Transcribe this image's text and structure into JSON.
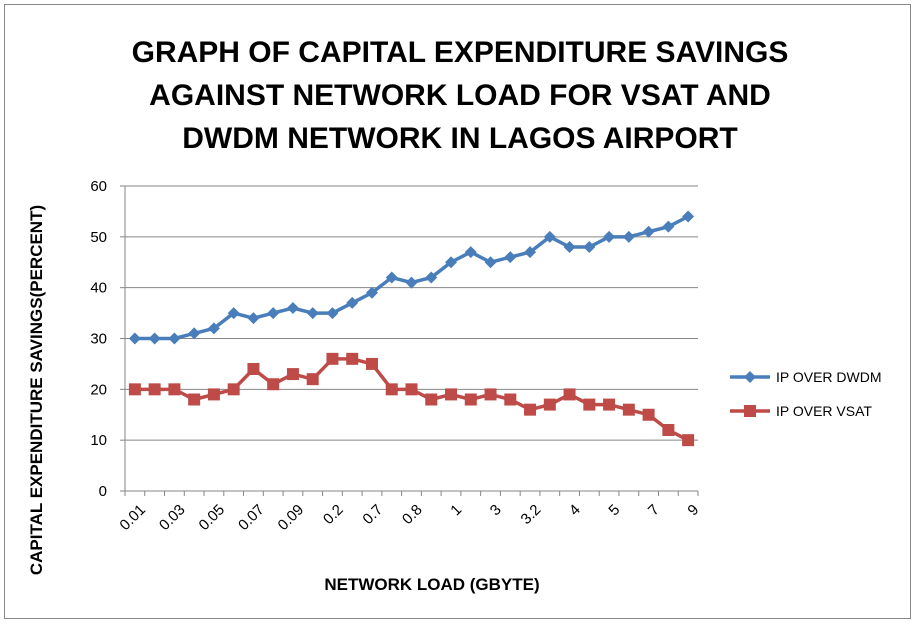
{
  "chart_data": {
    "type": "line",
    "title": [
      "GRAPH OF CAPITAL EXPENDITURE SAVINGS",
      "AGAINST NETWORK LOAD FOR VSAT AND",
      "DWDM NETWORK IN LAGOS AIRPORT"
    ],
    "x_label": "NETWORK LOAD (GBYTE)",
    "y_label": "CAPITAL EXPENDITURE SAVINGS(PERCENT)",
    "categories": [
      "0.01",
      null,
      "0.03",
      null,
      "0.05",
      null,
      "0.07",
      null,
      "0.09",
      null,
      "0.2",
      null,
      "0.7",
      null,
      "0.8",
      null,
      "1",
      null,
      "3",
      null,
      "3.2",
      null,
      "4",
      null,
      "5",
      null,
      "7",
      null,
      "9"
    ],
    "series": [
      {
        "name": "IP OVER DWDM",
        "color": "#4a7ebb",
        "marker": "diamond",
        "values": [
          30,
          30,
          30,
          31,
          32,
          35,
          34,
          35,
          36,
          35,
          35,
          37,
          39,
          42,
          41,
          42,
          45,
          47,
          45,
          46,
          47,
          50,
          48,
          48,
          50,
          50,
          51,
          52,
          54
        ]
      },
      {
        "name": "IP OVER VSAT",
        "color": "#be4b48",
        "marker": "square",
        "values": [
          20,
          20,
          20,
          18,
          19,
          20,
          24,
          21,
          23,
          22,
          26,
          26,
          25,
          20,
          20,
          18,
          19,
          18,
          19,
          18,
          16,
          17,
          19,
          17,
          17,
          16,
          15,
          12,
          10
        ]
      }
    ],
    "ylim": [
      0,
      60
    ],
    "yticks": [
      0,
      10,
      20,
      30,
      40,
      50,
      60
    ],
    "grid": true,
    "legend": "right"
  }
}
